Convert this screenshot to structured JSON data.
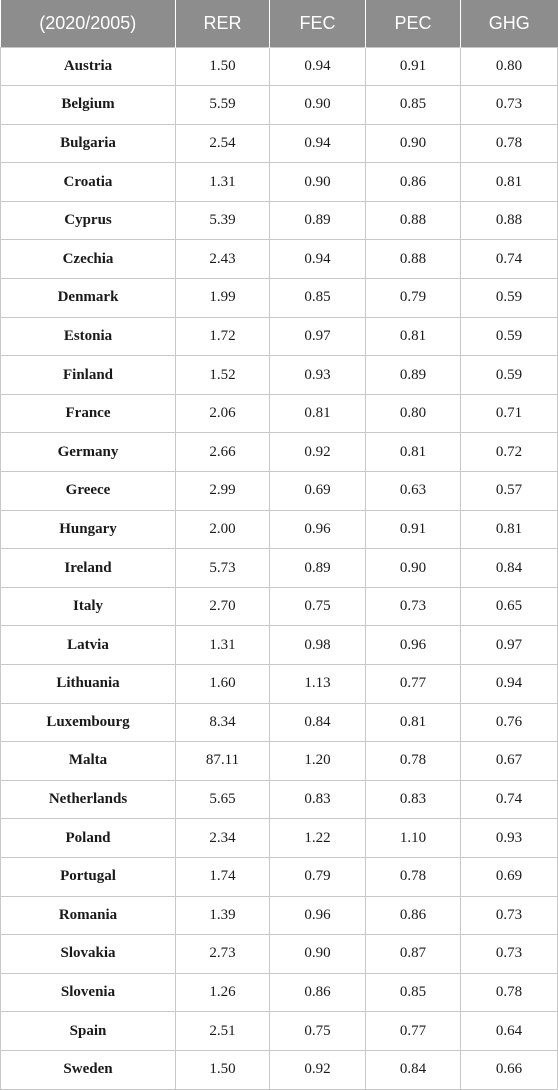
{
  "table": {
    "headers": [
      "(2020/2005)",
      "RER",
      "FEC",
      "PEC",
      "GHG"
    ],
    "rows": [
      [
        "Austria",
        "1.50",
        "0.94",
        "0.91",
        "0.80"
      ],
      [
        "Belgium",
        "5.59",
        "0.90",
        "0.85",
        "0.73"
      ],
      [
        "Bulgaria",
        "2.54",
        "0.94",
        "0.90",
        "0.78"
      ],
      [
        "Croatia",
        "1.31",
        "0.90",
        "0.86",
        "0.81"
      ],
      [
        "Cyprus",
        "5.39",
        "0.89",
        "0.88",
        "0.88"
      ],
      [
        "Czechia",
        "2.43",
        "0.94",
        "0.88",
        "0.74"
      ],
      [
        "Denmark",
        "1.99",
        "0.85",
        "0.79",
        "0.59"
      ],
      [
        "Estonia",
        "1.72",
        "0.97",
        "0.81",
        "0.59"
      ],
      [
        "Finland",
        "1.52",
        "0.93",
        "0.89",
        "0.59"
      ],
      [
        "France",
        "2.06",
        "0.81",
        "0.80",
        "0.71"
      ],
      [
        "Germany",
        "2.66",
        "0.92",
        "0.81",
        "0.72"
      ],
      [
        "Greece",
        "2.99",
        "0.69",
        "0.63",
        "0.57"
      ],
      [
        "Hungary",
        "2.00",
        "0.96",
        "0.91",
        "0.81"
      ],
      [
        "Ireland",
        "5.73",
        "0.89",
        "0.90",
        "0.84"
      ],
      [
        "Italy",
        "2.70",
        "0.75",
        "0.73",
        "0.65"
      ],
      [
        "Latvia",
        "1.31",
        "0.98",
        "0.96",
        "0.97"
      ],
      [
        "Lithuania",
        "1.60",
        "1.13",
        "0.77",
        "0.94"
      ],
      [
        "Luxembourg",
        "8.34",
        "0.84",
        "0.81",
        "0.76"
      ],
      [
        "Malta",
        "87.11",
        "1.20",
        "0.78",
        "0.67"
      ],
      [
        "Netherlands",
        "5.65",
        "0.83",
        "0.83",
        "0.74"
      ],
      [
        "Poland",
        "2.34",
        "1.22",
        "1.10",
        "0.93"
      ],
      [
        "Portugal",
        "1.74",
        "0.79",
        "0.78",
        "0.69"
      ],
      [
        "Romania",
        "1.39",
        "0.96",
        "0.86",
        "0.73"
      ],
      [
        "Slovakia",
        "2.73",
        "0.90",
        "0.87",
        "0.73"
      ],
      [
        "Slovenia",
        "1.26",
        "0.86",
        "0.85",
        "0.78"
      ],
      [
        "Spain",
        "2.51",
        "0.75",
        "0.77",
        "0.64"
      ],
      [
        "Sweden",
        "1.50",
        "0.92",
        "0.84",
        "0.66"
      ]
    ]
  },
  "colors": {
    "header_background": "#8d8d8d",
    "header_text": "#ffffff",
    "grid_line": "#c8c8c8"
  }
}
